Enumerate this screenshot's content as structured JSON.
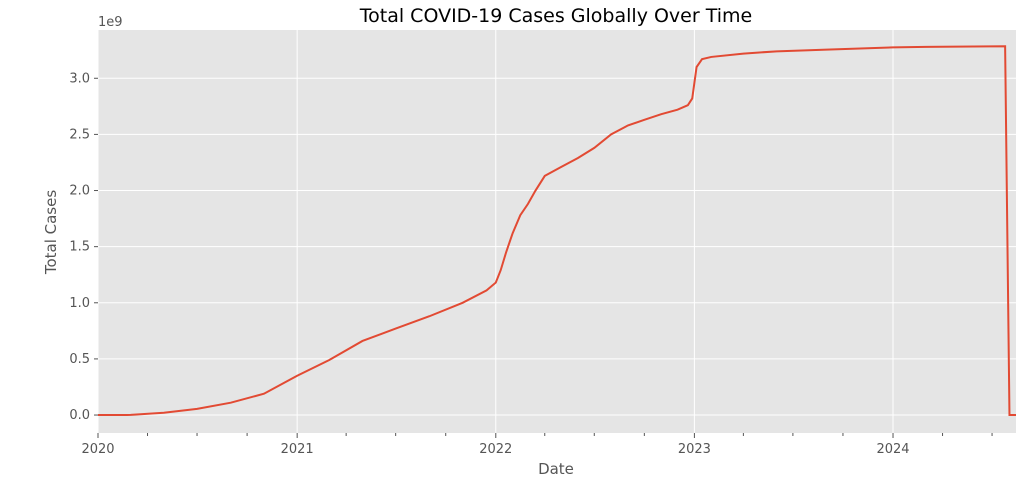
{
  "chart_data": {
    "type": "line",
    "title": "Total COVID-19 Cases Globally Over Time",
    "xlabel": "Date",
    "ylabel": "Total Cases",
    "y_scale_label": "1e9",
    "xlim": [
      "2020-01-01",
      "2024-08-14"
    ],
    "ylim": [
      -0.16,
      3.43
    ],
    "x_ticks": [
      "2020",
      "2021",
      "2022",
      "2023",
      "2024"
    ],
    "y_ticks": [
      "0.0",
      "0.5",
      "1.0",
      "1.5",
      "2.0",
      "2.5",
      "3.0"
    ],
    "grid": true,
    "colors": {
      "line": "#E24A33",
      "background": "#E5E5E5",
      "grid": "#FFFFFF"
    },
    "series": [
      {
        "x": [
          "2020-01-01",
          "2020-03-01",
          "2020-05-01",
          "2020-07-01",
          "2020-09-01",
          "2020-11-01",
          "2021-01-01",
          "2021-03-01",
          "2021-05-01",
          "2021-07-01",
          "2021-09-01",
          "2021-11-01",
          "2021-12-15",
          "2022-01-01",
          "2022-01-10",
          "2022-01-20",
          "2022-02-01",
          "2022-02-15",
          "2022-03-01",
          "2022-03-15",
          "2022-04-01",
          "2022-05-01",
          "2022-06-01",
          "2022-07-01",
          "2022-08-01",
          "2022-09-01",
          "2022-10-01",
          "2022-11-01",
          "2022-12-01",
          "2022-12-20",
          "2022-12-28",
          "2023-01-05",
          "2023-01-15",
          "2023-02-01",
          "2023-04-01",
          "2023-06-01",
          "2023-09-01",
          "2024-01-01",
          "2024-03-01",
          "2024-07-25",
          "2024-08-02",
          "2024-08-14"
        ],
        "y": [
          0.0,
          0.001,
          0.02,
          0.055,
          0.11,
          0.19,
          0.35,
          0.49,
          0.66,
          0.77,
          0.88,
          1.0,
          1.11,
          1.18,
          1.29,
          1.45,
          1.62,
          1.78,
          1.88,
          2.0,
          2.13,
          2.21,
          2.29,
          2.38,
          2.5,
          2.58,
          2.63,
          2.68,
          2.72,
          2.76,
          2.82,
          3.1,
          3.17,
          3.19,
          3.22,
          3.24,
          3.255,
          3.275,
          3.28,
          3.285,
          0.0,
          0.0
        ]
      }
    ]
  }
}
